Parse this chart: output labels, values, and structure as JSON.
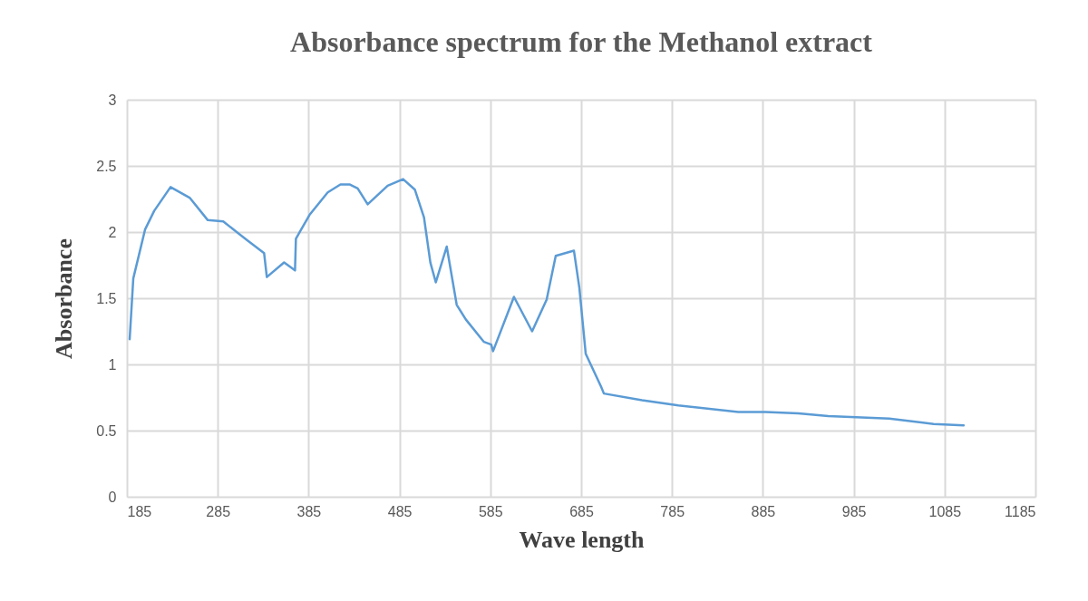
{
  "chart_data": {
    "type": "line",
    "title": "Absorbance spectrum for the Methanol extract",
    "xlabel": "Wave length",
    "ylabel": "Absorbance",
    "x": [
      188,
      192,
      205,
      215,
      233,
      254,
      274,
      291,
      317,
      336,
      339,
      358,
      370,
      371,
      386,
      406,
      420,
      430,
      439,
      450,
      472,
      489,
      502,
      512,
      519,
      525,
      537,
      548,
      558,
      578,
      586,
      588,
      611,
      631,
      647,
      657,
      677,
      683,
      690,
      707,
      710,
      752,
      792,
      858,
      888,
      924,
      957,
      1024,
      1073,
      1106
    ],
    "series": [
      {
        "color": "#5b9bd5",
        "values": [
          1.19,
          1.65,
          2.02,
          2.16,
          2.34,
          2.26,
          2.09,
          2.08,
          1.94,
          1.84,
          1.66,
          1.77,
          1.71,
          1.95,
          2.13,
          2.3,
          2.36,
          2.36,
          2.33,
          2.21,
          2.35,
          2.4,
          2.32,
          2.11,
          1.77,
          1.62,
          1.89,
          1.45,
          1.34,
          1.17,
          1.15,
          1.1,
          1.51,
          1.25,
          1.49,
          1.82,
          1.86,
          1.58,
          1.08,
          0.83,
          0.78,
          0.73,
          0.69,
          0.64,
          0.64,
          0.63,
          0.61,
          0.59,
          0.55,
          0.54
        ]
      }
    ],
    "xlim": [
      185,
      1185
    ],
    "xticks": [
      185,
      285,
      385,
      485,
      585,
      685,
      785,
      885,
      985,
      1085,
      1185
    ],
    "ylim": [
      0,
      3
    ],
    "yticks": [
      0,
      0.5,
      1,
      1.5,
      2,
      2.5,
      3
    ],
    "grid": true,
    "line_style": "solid",
    "marker": "none"
  }
}
